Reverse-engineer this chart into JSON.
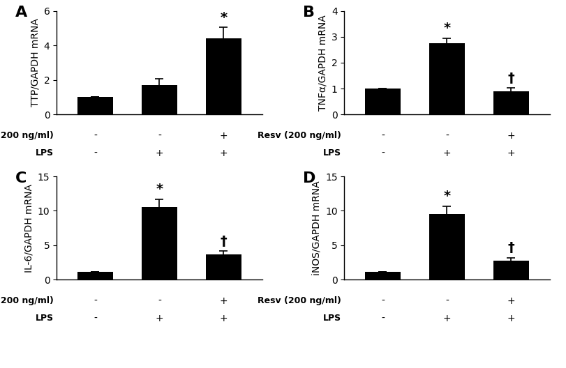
{
  "panels": [
    {
      "label": "A",
      "ylabel": "TTP/GAPDH mRNA",
      "ylim": [
        0,
        6
      ],
      "yticks": [
        0,
        2,
        4,
        6
      ],
      "values": [
        1.0,
        1.7,
        4.4
      ],
      "errors": [
        0.0,
        0.35,
        0.65
      ],
      "sig_labels": [
        "",
        "",
        "*"
      ],
      "sig_labels2": [
        "",
        "",
        ""
      ],
      "bar_color": "#000000"
    },
    {
      "label": "B",
      "ylabel": "TNFα/GAPDH mRNA",
      "ylim": [
        0,
        4
      ],
      "yticks": [
        0,
        1,
        2,
        3,
        4
      ],
      "values": [
        1.0,
        2.75,
        0.9
      ],
      "errors": [
        0.0,
        0.2,
        0.12
      ],
      "sig_labels": [
        "",
        "*",
        ""
      ],
      "sig_labels2": [
        "",
        "",
        "†"
      ],
      "bar_color": "#000000"
    },
    {
      "label": "C",
      "ylabel": "IL-6/GAPDH mRNA",
      "ylim": [
        0,
        15
      ],
      "yticks": [
        0,
        5,
        10,
        15
      ],
      "values": [
        1.1,
        10.6,
        3.7
      ],
      "errors": [
        0.0,
        1.1,
        0.45
      ],
      "sig_labels": [
        "",
        "*",
        ""
      ],
      "sig_labels2": [
        "",
        "",
        "†"
      ],
      "bar_color": "#000000"
    },
    {
      "label": "D",
      "ylabel": "iNOS/GAPDH mRNA",
      "ylim": [
        0,
        15
      ],
      "yticks": [
        0,
        5,
        10,
        15
      ],
      "values": [
        1.1,
        9.5,
        2.8
      ],
      "errors": [
        0.0,
        1.2,
        0.4
      ],
      "sig_labels": [
        "",
        "*",
        ""
      ],
      "sig_labels2": [
        "",
        "",
        "†"
      ],
      "bar_color": "#000000"
    }
  ],
  "x_signs": [
    [
      "-",
      "-",
      "+"
    ],
    [
      "-",
      "+",
      "+"
    ]
  ],
  "bar_width": 0.55,
  "background_color": "#ffffff",
  "tick_fontsize": 10,
  "ylabel_fontsize": 10,
  "sig_fontsize": 14,
  "panel_label_fontsize": 16,
  "xlabel_fontsize": 9,
  "signs_fontsize": 10
}
